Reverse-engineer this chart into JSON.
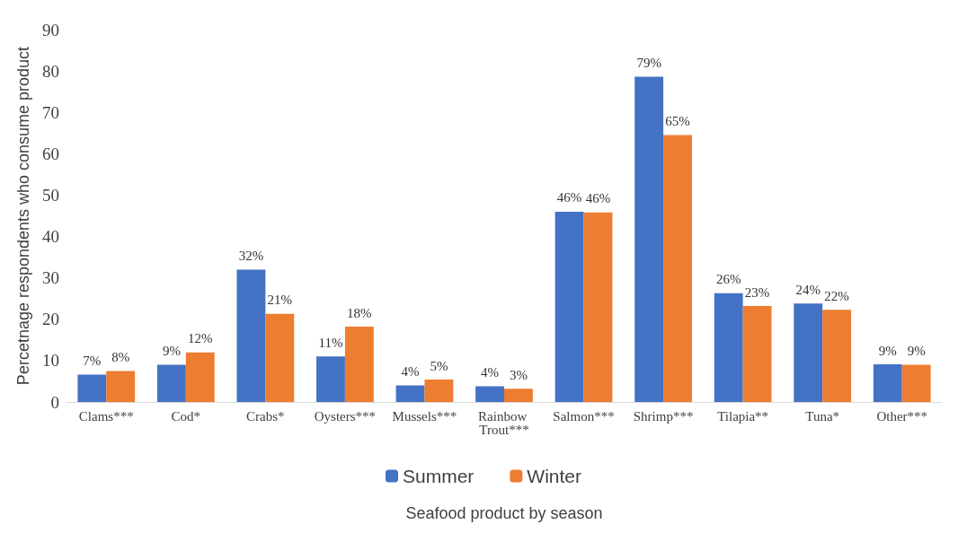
{
  "chart_data": {
    "type": "bar",
    "xlabel": "Seafood product by season",
    "ylabel": "Percetnage respondents who consume product",
    "categories": [
      "Clams***",
      "Cod*",
      "Crabs*",
      "Oysters***",
      "Mussels***",
      "Rainbow Trout***",
      "Salmon***",
      "Shrimp***",
      "Tilapia**",
      "Tuna*",
      "Other***"
    ],
    "series": [
      {
        "name": "Summer",
        "color": "#4472c4",
        "values": [
          6.6,
          9,
          32,
          11,
          4,
          3.8,
          46,
          78.6,
          26.3,
          23.8,
          9.1
        ],
        "value_labels": [
          "7%",
          "9%",
          "32%",
          "11%",
          "4%",
          "4%",
          "46%",
          "79%",
          "26%",
          "24%",
          "9%"
        ]
      },
      {
        "name": "Winter",
        "color": "#ed7d31",
        "values": [
          7.5,
          12,
          21.3,
          18.2,
          5.4,
          3.2,
          45.8,
          64.5,
          23.2,
          22.3,
          9
        ],
        "value_labels": [
          "8%",
          "12%",
          "21%",
          "18%",
          "5%",
          "3%",
          "46%",
          "65%",
          "23%",
          "22%",
          "9%"
        ]
      }
    ],
    "ylim": [
      0,
      90
    ],
    "yticks": [
      0,
      10,
      20,
      30,
      40,
      50,
      60,
      70,
      80,
      90
    ],
    "grid": false,
    "legend": "bottom"
  }
}
